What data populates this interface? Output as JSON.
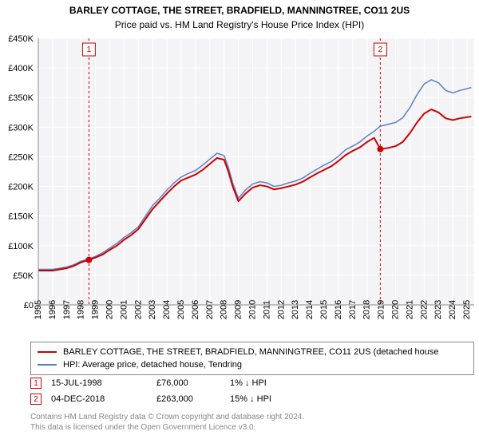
{
  "title": "BARLEY COTTAGE, THE STREET, BRADFIELD, MANNINGTREE, CO11 2US",
  "subtitle": "Price paid vs. HM Land Registry's House Price Index (HPI)",
  "chart": {
    "type": "line",
    "plot_bg": "#f4f4f6",
    "grid_color": "#ffffff",
    "axis_color": "#888888",
    "xlim": [
      1995,
      2025.5
    ],
    "ylim": [
      0,
      450000
    ],
    "ytick_step": 50000,
    "yticks": [
      "£0",
      "£50K",
      "£100K",
      "£150K",
      "£200K",
      "£250K",
      "£300K",
      "£350K",
      "£400K",
      "£450K"
    ],
    "xticks": [
      1995,
      1996,
      1997,
      1998,
      1999,
      2000,
      2001,
      2002,
      2003,
      2004,
      2005,
      2006,
      2007,
      2008,
      2009,
      2010,
      2011,
      2012,
      2013,
      2014,
      2015,
      2016,
      2017,
      2018,
      2019,
      2020,
      2021,
      2022,
      2023,
      2024,
      2025
    ],
    "series": [
      {
        "name": "BARLEY COTTAGE, THE STREET, BRADFIELD, MANNINGTREE, CO11 2US (detached house",
        "color": "#cc0000",
        "width": 2,
        "data": [
          [
            1995,
            58000
          ],
          [
            1995.5,
            58000
          ],
          [
            1996,
            58000
          ],
          [
            1996.5,
            60000
          ],
          [
            1997,
            62000
          ],
          [
            1997.5,
            66000
          ],
          [
            1998,
            72000
          ],
          [
            1998.54,
            76000
          ],
          [
            1999,
            80000
          ],
          [
            1999.5,
            85000
          ],
          [
            2000,
            93000
          ],
          [
            2000.5,
            100000
          ],
          [
            2001,
            110000
          ],
          [
            2001.5,
            118000
          ],
          [
            2002,
            128000
          ],
          [
            2002.5,
            145000
          ],
          [
            2003,
            162000
          ],
          [
            2003.5,
            175000
          ],
          [
            2004,
            188000
          ],
          [
            2004.5,
            200000
          ],
          [
            2005,
            210000
          ],
          [
            2005.5,
            215000
          ],
          [
            2006,
            220000
          ],
          [
            2006.5,
            228000
          ],
          [
            2007,
            238000
          ],
          [
            2007.5,
            248000
          ],
          [
            2008,
            245000
          ],
          [
            2008.3,
            225000
          ],
          [
            2008.6,
            200000
          ],
          [
            2009,
            175000
          ],
          [
            2009.5,
            188000
          ],
          [
            2010,
            198000
          ],
          [
            2010.5,
            202000
          ],
          [
            2011,
            200000
          ],
          [
            2011.5,
            195000
          ],
          [
            2012,
            197000
          ],
          [
            2012.5,
            200000
          ],
          [
            2013,
            203000
          ],
          [
            2013.5,
            208000
          ],
          [
            2014,
            215000
          ],
          [
            2014.5,
            222000
          ],
          [
            2015,
            228000
          ],
          [
            2015.5,
            234000
          ],
          [
            2016,
            243000
          ],
          [
            2016.5,
            253000
          ],
          [
            2017,
            260000
          ],
          [
            2017.5,
            266000
          ],
          [
            2018,
            275000
          ],
          [
            2018.5,
            282000
          ],
          [
            2018.93,
            263000
          ],
          [
            2019,
            263000
          ],
          [
            2019.5,
            265000
          ],
          [
            2020,
            268000
          ],
          [
            2020.5,
            275000
          ],
          [
            2021,
            290000
          ],
          [
            2021.5,
            308000
          ],
          [
            2022,
            323000
          ],
          [
            2022.5,
            330000
          ],
          [
            2023,
            325000
          ],
          [
            2023.5,
            315000
          ],
          [
            2024,
            312000
          ],
          [
            2024.5,
            315000
          ],
          [
            2025,
            317000
          ],
          [
            2025.3,
            318000
          ]
        ]
      },
      {
        "name": "HPI: Average price, detached house, Tendring",
        "color": "#5b7fc7",
        "width": 1.5,
        "data": [
          [
            1995,
            60000
          ],
          [
            1995.5,
            60000
          ],
          [
            1996,
            60000
          ],
          [
            1996.5,
            62000
          ],
          [
            1997,
            64000
          ],
          [
            1997.5,
            68000
          ],
          [
            1998,
            74000
          ],
          [
            1998.5,
            77000
          ],
          [
            1999,
            82000
          ],
          [
            1999.5,
            88000
          ],
          [
            2000,
            96000
          ],
          [
            2000.5,
            104000
          ],
          [
            2001,
            114000
          ],
          [
            2001.5,
            122000
          ],
          [
            2002,
            132000
          ],
          [
            2002.5,
            150000
          ],
          [
            2003,
            168000
          ],
          [
            2003.5,
            180000
          ],
          [
            2004,
            194000
          ],
          [
            2004.5,
            206000
          ],
          [
            2005,
            216000
          ],
          [
            2005.5,
            222000
          ],
          [
            2006,
            227000
          ],
          [
            2006.5,
            236000
          ],
          [
            2007,
            246000
          ],
          [
            2007.5,
            256000
          ],
          [
            2008,
            252000
          ],
          [
            2008.3,
            232000
          ],
          [
            2008.6,
            206000
          ],
          [
            2009,
            180000
          ],
          [
            2009.5,
            194000
          ],
          [
            2010,
            204000
          ],
          [
            2010.5,
            208000
          ],
          [
            2011,
            206000
          ],
          [
            2011.5,
            200000
          ],
          [
            2012,
            202000
          ],
          [
            2012.5,
            206000
          ],
          [
            2013,
            209000
          ],
          [
            2013.5,
            214000
          ],
          [
            2014,
            222000
          ],
          [
            2014.5,
            229000
          ],
          [
            2015,
            236000
          ],
          [
            2015.5,
            242000
          ],
          [
            2016,
            251000
          ],
          [
            2016.5,
            262000
          ],
          [
            2017,
            268000
          ],
          [
            2017.5,
            275000
          ],
          [
            2018,
            285000
          ],
          [
            2018.5,
            293000
          ],
          [
            2018.93,
            302000
          ],
          [
            2019,
            302000
          ],
          [
            2019.5,
            305000
          ],
          [
            2020,
            308000
          ],
          [
            2020.5,
            316000
          ],
          [
            2021,
            333000
          ],
          [
            2021.5,
            355000
          ],
          [
            2022,
            373000
          ],
          [
            2022.5,
            380000
          ],
          [
            2023,
            375000
          ],
          [
            2023.5,
            362000
          ],
          [
            2024,
            358000
          ],
          [
            2024.5,
            362000
          ],
          [
            2025,
            365000
          ],
          [
            2025.3,
            367000
          ]
        ]
      }
    ],
    "sale_markers": [
      {
        "id": "1",
        "x": 1998.54,
        "y": 76000,
        "line_x": 1998.54
      },
      {
        "id": "2",
        "x": 2018.93,
        "y": 263000,
        "line_x": 2018.93
      }
    ],
    "marker_dot_color": "#cc0000",
    "marker_dot_radius": 4
  },
  "legend": {
    "items": [
      {
        "color": "#cc0000",
        "label": "BARLEY COTTAGE, THE STREET, BRADFIELD, MANNINGTREE, CO11 2US (detached house"
      },
      {
        "color": "#5b7fc7",
        "label": "HPI: Average price, detached house, Tendring"
      }
    ]
  },
  "events": [
    {
      "id": "1",
      "date": "15-JUL-1998",
      "price": "£76,000",
      "diff": "1% ↓ HPI"
    },
    {
      "id": "2",
      "date": "04-DEC-2018",
      "price": "£263,000",
      "diff": "15% ↓ HPI"
    }
  ],
  "footer": {
    "line1": "Contains HM Land Registry data © Crown copyright and database right 2024.",
    "line2": "This data is licensed under the Open Government Licence v3.0."
  }
}
